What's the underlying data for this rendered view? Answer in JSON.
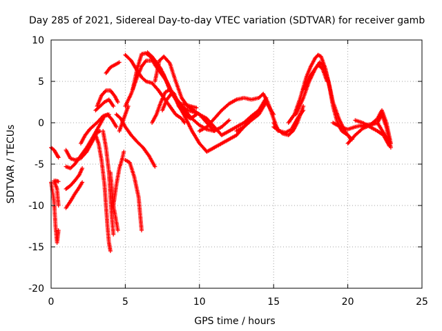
{
  "chart_data": {
    "type": "scatter",
    "title": "Day 285 of 2021, Sidereal Day-to-day VTEC variation (SDTVAR) for receiver gamb",
    "xlabel": "GPS time / hours",
    "ylabel": "SDTVAR / TECUs",
    "xlim": [
      0,
      25
    ],
    "ylim": [
      -20,
      10
    ],
    "xticks": [
      "0",
      "5",
      "10",
      "15",
      "20",
      "25"
    ],
    "yticks": [
      "10",
      "5",
      "0",
      "-5",
      "-10",
      "-15",
      "-20"
    ],
    "grid": true,
    "marker": "plus",
    "color": "#ff0000",
    "series": [
      {
        "name": "s1",
        "x": [
          0.0,
          0.2,
          0.4,
          0.5
        ],
        "y": [
          -3.0,
          -3.3,
          -3.9,
          -4.2
        ]
      },
      {
        "name": "s2",
        "x": [
          0.0,
          0.2,
          0.3,
          0.4,
          0.5
        ],
        "y": [
          -7.2,
          -9.5,
          -12.5,
          -14.5,
          -13.0
        ]
      },
      {
        "name": "s3",
        "x": [
          0.2,
          0.4,
          0.5
        ],
        "y": [
          -7.0,
          -8.0,
          -10.0
        ]
      },
      {
        "name": "s4",
        "x": [
          0.3,
          0.5
        ],
        "y": [
          -7.0,
          -7.1
        ]
      },
      {
        "name": "s5",
        "x": [
          1.0,
          1.3,
          1.6,
          2.0,
          2.4,
          2.8,
          3.1,
          3.3
        ],
        "y": [
          -3.3,
          -4.3,
          -4.5,
          -4.3,
          -3.5,
          -2.2,
          -1.2,
          -1.0
        ]
      },
      {
        "name": "s6",
        "x": [
          1.0,
          1.3,
          1.6,
          2.0,
          2.4,
          2.8,
          3.2,
          3.6,
          3.9
        ],
        "y": [
          -5.3,
          -5.5,
          -5.0,
          -4.0,
          -3.0,
          -1.8,
          -0.5,
          0.8,
          1.0
        ]
      },
      {
        "name": "s7",
        "x": [
          1.0,
          1.3,
          1.6,
          1.9,
          2.1
        ],
        "y": [
          -8.0,
          -7.6,
          -7.0,
          -6.3,
          -5.5
        ]
      },
      {
        "name": "s8",
        "x": [
          1.0,
          1.3,
          1.6,
          1.9,
          2.1
        ],
        "y": [
          -10.3,
          -9.5,
          -8.6,
          -7.8,
          -7.2
        ]
      },
      {
        "name": "s9",
        "x": [
          2.0,
          2.3,
          2.6,
          2.9,
          3.2,
          3.5,
          3.8,
          4.1,
          4.4
        ],
        "y": [
          -2.5,
          -1.5,
          -0.8,
          -0.3,
          0.2,
          0.8,
          1.0,
          0.4,
          -0.5
        ]
      },
      {
        "name": "s10",
        "x": [
          3.0,
          3.2,
          3.4,
          3.6,
          3.7,
          3.8,
          3.9,
          4.0
        ],
        "y": [
          -1.5,
          -2.5,
          -4.5,
          -7.5,
          -10.0,
          -12.5,
          -14.5,
          -15.5
        ]
      },
      {
        "name": "s11",
        "x": [
          3.5,
          3.7,
          3.9,
          4.0,
          4.1,
          4.2
        ],
        "y": [
          -1.0,
          -3.0,
          -6.0,
          -9.0,
          -11.5,
          -13.5
        ]
      },
      {
        "name": "s12",
        "x": [
          3.1,
          3.4,
          3.7,
          4.0,
          4.3,
          4.5
        ],
        "y": [
          2.0,
          3.3,
          3.9,
          3.9,
          3.2,
          2.5
        ]
      },
      {
        "name": "s13",
        "x": [
          3.0,
          3.3,
          3.6,
          3.9,
          4.2
        ],
        "y": [
          1.5,
          2.0,
          2.5,
          2.8,
          2.0
        ]
      },
      {
        "name": "s14",
        "x": [
          3.7,
          4.0,
          4.3,
          4.6
        ],
        "y": [
          6.0,
          6.7,
          7.0,
          7.3
        ]
      },
      {
        "name": "s15",
        "x": [
          4.0,
          4.2,
          4.5
        ],
        "y": [
          -6.0,
          -10.0,
          -13.0
        ]
      },
      {
        "name": "s16",
        "x": [
          4.2,
          4.4,
          4.6,
          4.8,
          4.9
        ],
        "y": [
          -10.0,
          -7.5,
          -5.5,
          -4.3,
          -3.5
        ]
      },
      {
        "name": "s17",
        "x": [
          4.4,
          4.7,
          5.0,
          5.4,
          5.8,
          6.2,
          6.6,
          7.0
        ],
        "y": [
          1.0,
          0.5,
          -0.5,
          -1.5,
          -2.3,
          -3.0,
          -4.0,
          -5.3
        ]
      },
      {
        "name": "s18",
        "x": [
          5.0,
          5.3,
          5.6,
          5.9,
          6.0,
          6.1
        ],
        "y": [
          -4.5,
          -4.8,
          -6.5,
          -9.0,
          -11.0,
          -13.0
        ]
      },
      {
        "name": "s19",
        "x": [
          4.6,
          4.8,
          5.0,
          5.2
        ],
        "y": [
          -1.0,
          0.0,
          1.0,
          2.0
        ]
      },
      {
        "name": "s20",
        "x": [
          5.0,
          5.4,
          5.8,
          6.1,
          6.4,
          6.8,
          7.2,
          7.6,
          8.0,
          8.4,
          8.8,
          9.0
        ],
        "y": [
          8.2,
          7.5,
          6.3,
          5.5,
          5.0,
          4.8,
          4.0,
          3.0,
          2.0,
          1.0,
          0.5,
          0.0
        ]
      },
      {
        "name": "s21",
        "x": [
          5.0,
          5.4,
          5.8,
          6.1,
          6.4,
          6.8,
          7.2,
          7.6,
          8.0,
          8.5,
          9.0,
          9.5,
          10.0,
          10.5,
          11.0
        ],
        "y": [
          2.0,
          3.5,
          5.5,
          6.8,
          7.5,
          7.5,
          7.0,
          5.8,
          4.0,
          2.5,
          0.8,
          -1.0,
          -2.5,
          -3.5,
          -3.0
        ]
      },
      {
        "name": "s22",
        "x": [
          5.5,
          5.8,
          6.1,
          6.4,
          6.7,
          7.0,
          7.4,
          7.8,
          8.2,
          8.6,
          9.0,
          9.5,
          10.0,
          10.5,
          11.0,
          11.5,
          12.0
        ],
        "y": [
          4.0,
          6.5,
          8.3,
          8.4,
          8.0,
          7.0,
          6.0,
          5.0,
          3.5,
          2.3,
          1.5,
          0.5,
          -0.3,
          -0.8,
          -1.0,
          -0.5,
          0.3
        ]
      },
      {
        "name": "s23",
        "x": [
          6.5,
          6.8,
          7.1,
          7.4,
          7.7,
          8.0,
          8.4,
          8.8,
          9.2,
          9.6,
          10.0,
          10.5,
          11.0
        ],
        "y": [
          8.5,
          8.0,
          7.3,
          6.5,
          5.3,
          4.0,
          3.0,
          2.0,
          1.5,
          1.3,
          1.0,
          0.0,
          -1.0
        ]
      },
      {
        "name": "s24",
        "x": [
          7.0,
          7.3,
          7.6,
          8.0,
          8.4,
          8.8,
          9.2,
          9.6,
          10.0,
          10.5,
          11.0,
          11.5
        ],
        "y": [
          5.0,
          7.5,
          8.0,
          7.2,
          5.0,
          3.0,
          2.0,
          1.5,
          1.0,
          0.5,
          -0.5,
          -1.5
        ]
      },
      {
        "name": "s25",
        "x": [
          6.8,
          7.1,
          7.4,
          7.7,
          8.0,
          8.3,
          8.6,
          9.0,
          9.4,
          9.8
        ],
        "y": [
          0.0,
          1.0,
          2.5,
          3.7,
          4.0,
          3.5,
          2.0,
          1.0,
          0.5,
          1.0
        ]
      },
      {
        "name": "s26",
        "x": [
          7.5,
          7.8,
          8.1,
          8.4,
          8.7,
          9.0,
          9.4,
          9.8
        ],
        "y": [
          1.5,
          2.8,
          3.5,
          3.0,
          2.3,
          2.2,
          2.0,
          1.8
        ]
      },
      {
        "name": "s27",
        "x": [
          10.0,
          10.5,
          11.0,
          11.5,
          12.0,
          12.5,
          13.0,
          13.5,
          14.0,
          14.3,
          14.6,
          15.0,
          15.3
        ],
        "y": [
          -1.0,
          -0.5,
          0.5,
          1.5,
          2.3,
          2.8,
          3.0,
          2.8,
          3.0,
          3.5,
          2.5,
          0.5,
          -1.0
        ]
      },
      {
        "name": "s28",
        "x": [
          11.0,
          11.5,
          12.0,
          12.5,
          13.0,
          13.5,
          14.0,
          14.5,
          15.0
        ],
        "y": [
          -3.0,
          -2.5,
          -2.0,
          -1.5,
          -0.5,
          0.3,
          1.0,
          2.5,
          1.0
        ]
      },
      {
        "name": "s29",
        "x": [
          11.5,
          12.0,
          12.5,
          13.0,
          13.5,
          14.0,
          14.5
        ],
        "y": [
          -1.5,
          -1.0,
          -0.5,
          0.0,
          0.8,
          1.5,
          3.0
        ]
      },
      {
        "name": "s30",
        "x": [
          12.5,
          13.0,
          13.5,
          14.0,
          14.5
        ],
        "y": [
          -1.0,
          -0.5,
          0.5,
          1.5,
          2.5
        ]
      },
      {
        "name": "s31",
        "x": [
          15.0,
          15.3,
          15.6,
          16.0,
          16.3,
          16.6,
          17.0
        ],
        "y": [
          0.0,
          -0.8,
          -1.3,
          -1.5,
          -1.0,
          0.0,
          2.0
        ]
      },
      {
        "name": "s32",
        "x": [
          15.0,
          15.4,
          15.8,
          16.2,
          16.6,
          17.0
        ],
        "y": [
          -0.5,
          -1.0,
          -1.2,
          -0.8,
          0.5,
          1.5
        ]
      },
      {
        "name": "s33",
        "x": [
          16.0,
          16.4,
          16.8,
          17.2,
          17.5,
          17.8,
          18.0,
          18.2,
          18.5,
          18.8,
          19.0,
          19.3,
          19.6,
          20.0,
          20.3
        ],
        "y": [
          0.0,
          1.0,
          3.0,
          5.5,
          6.8,
          7.8,
          8.2,
          8.0,
          6.5,
          4.0,
          2.0,
          0.0,
          -1.0,
          -1.5,
          -2.0
        ]
      },
      {
        "name": "s34",
        "x": [
          16.5,
          17.0,
          17.4,
          17.8,
          18.1,
          18.4,
          18.7,
          19.0,
          19.4,
          19.8,
          20.2
        ],
        "y": [
          1.0,
          3.0,
          5.0,
          6.5,
          7.3,
          6.8,
          5.0,
          2.5,
          0.5,
          -1.0,
          -2.0
        ]
      },
      {
        "name": "s35",
        "x": [
          17.0,
          17.4,
          17.8,
          18.0,
          18.3,
          18.6
        ],
        "y": [
          4.0,
          5.5,
          6.5,
          7.0,
          6.5,
          5.0
        ]
      },
      {
        "name": "s36",
        "x": [
          19.0,
          19.5,
          20.0,
          20.5,
          21.0,
          21.5,
          22.0,
          22.5,
          22.8
        ],
        "y": [
          0.0,
          -0.5,
          -0.8,
          -0.5,
          -0.3,
          -0.2,
          0.0,
          -1.5,
          -2.5
        ]
      },
      {
        "name": "s37",
        "x": [
          20.0,
          20.5,
          21.0,
          21.5,
          22.0,
          22.3,
          22.6,
          22.9
        ],
        "y": [
          -2.5,
          -1.5,
          -0.7,
          -0.3,
          0.0,
          1.0,
          -0.5,
          -3.0
        ]
      },
      {
        "name": "s38",
        "x": [
          20.5,
          21.0,
          21.5,
          22.0,
          22.4,
          22.8
        ],
        "y": [
          0.3,
          0.0,
          -0.5,
          -1.0,
          -1.5,
          -2.8
        ]
      },
      {
        "name": "s39",
        "x": [
          21.0,
          21.5,
          22.0,
          22.3,
          22.6,
          22.9
        ],
        "y": [
          -0.5,
          -0.3,
          0.5,
          1.5,
          0.0,
          -2.5
        ]
      }
    ]
  }
}
